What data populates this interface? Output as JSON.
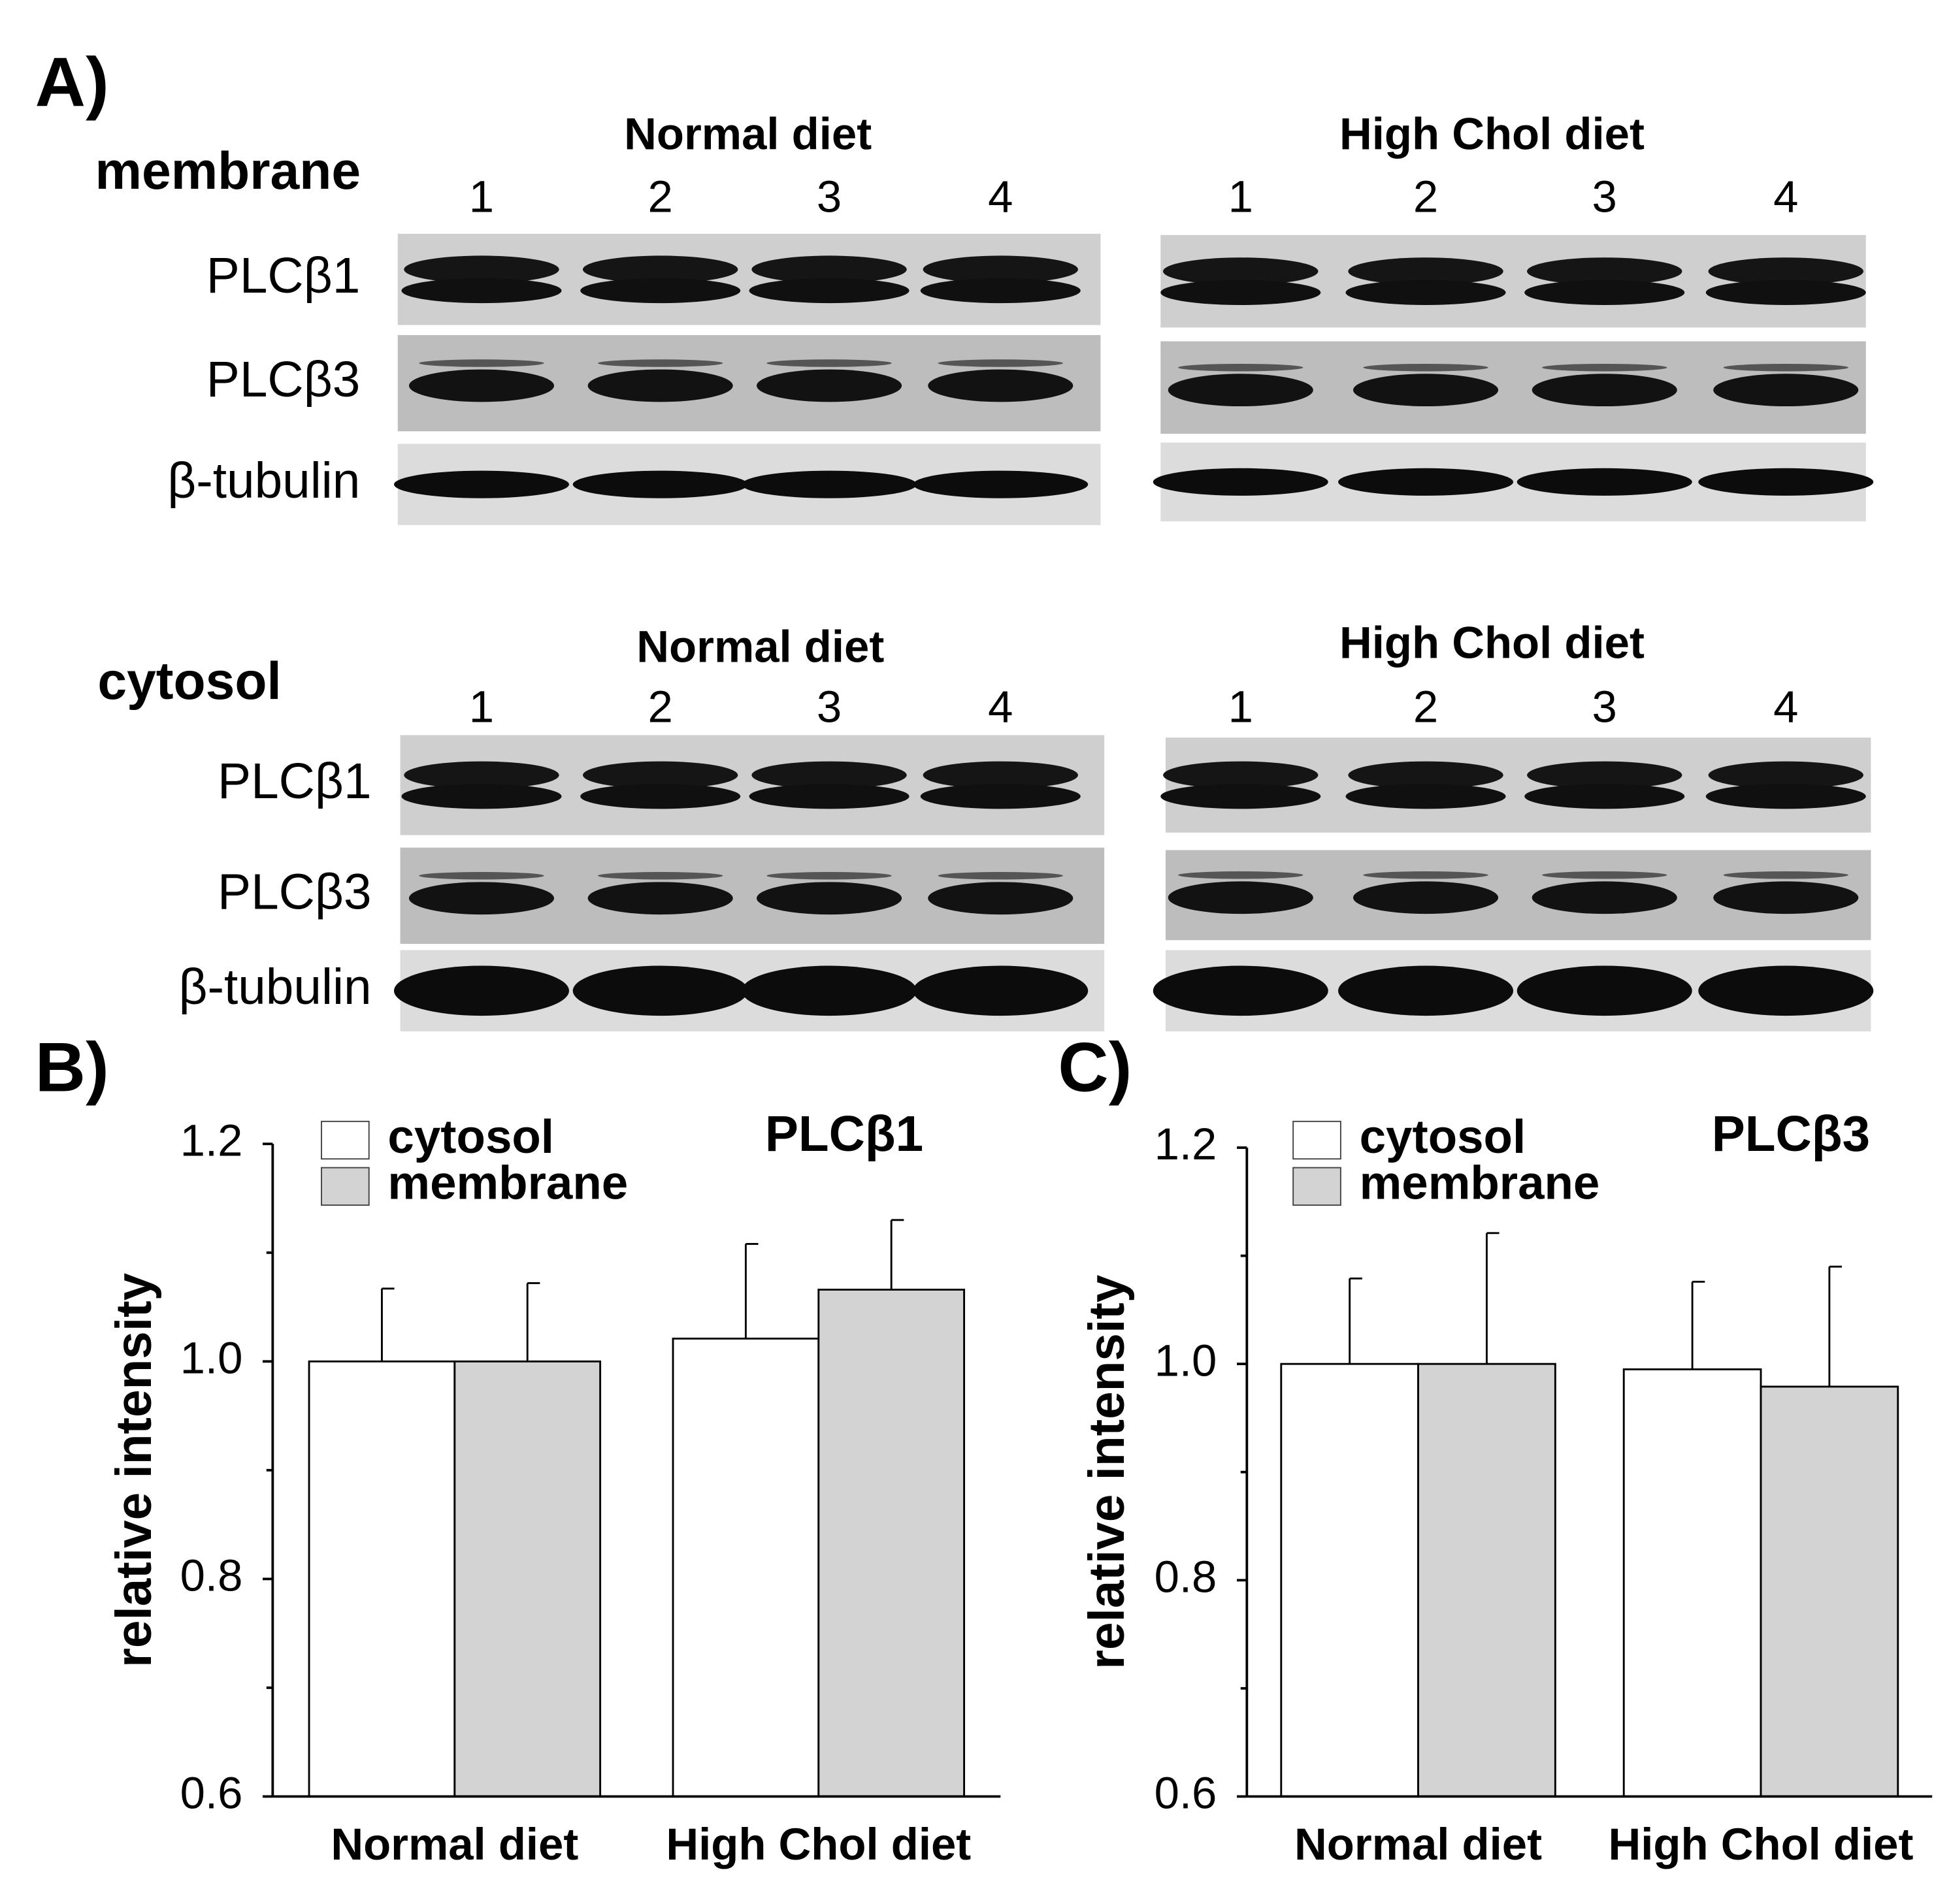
{
  "blots": {
    "label": "A)",
    "sections": [
      {
        "fraction": "membrane",
        "groups": [
          {
            "title": "Normal diet",
            "lanes": [
              "1",
              "2",
              "3",
              "4"
            ]
          },
          {
            "title": "High Chol diet",
            "lanes": [
              "1",
              "2",
              "3",
              "4"
            ]
          }
        ],
        "rows": [
          "PLCβ1",
          "PLCβ3",
          "β-tubulin"
        ]
      },
      {
        "fraction": "cytosol",
        "groups": [
          {
            "title": "Normal diet",
            "lanes": [
              "1",
              "2",
              "3",
              "4"
            ]
          },
          {
            "title": "High Chol diet",
            "lanes": [
              "1",
              "2",
              "3",
              "4"
            ]
          }
        ],
        "rows": [
          "PLCβ1",
          "PLCβ3",
          "β-tubulin"
        ]
      }
    ]
  },
  "chart_data": [
    {
      "type": "bar",
      "panel": "B)",
      "title": "PLCβ1",
      "y_label": "relative intensity",
      "categories": [
        "Normal diet",
        "High Chol diet"
      ],
      "series": [
        {
          "name": "cytosol",
          "color": "#ffffff",
          "values": [
            1.0,
            1.021
          ],
          "errors": [
            0.067,
            0.087
          ]
        },
        {
          "name": "membrane",
          "color": "#d3d3d3",
          "values": [
            1.0,
            1.066
          ],
          "errors": [
            0.072,
            0.064
          ]
        }
      ],
      "ylim": [
        0.6,
        1.2
      ],
      "yticks": [
        0.6,
        0.8,
        {
          "value": 1,
          "label": "1.0"
        },
        1.2
      ],
      "minor_yticks": [
        0.7,
        0.9,
        1.1
      ]
    },
    {
      "type": "bar",
      "panel": "C)",
      "title": "PLCβ3",
      "y_label": "relative intensity",
      "categories": [
        "Normal diet",
        "High Chol diet"
      ],
      "series": [
        {
          "name": "cytosol",
          "color": "#ffffff",
          "values": [
            1.0,
            0.995
          ],
          "errors": [
            0.079,
            0.081
          ]
        },
        {
          "name": "membrane",
          "color": "#d3d3d3",
          "values": [
            1.0,
            0.979
          ],
          "errors": [
            0.121,
            0.111
          ]
        }
      ],
      "ylim": [
        0.6,
        1.2
      ],
      "yticks": [
        0.6,
        0.8,
        {
          "value": 1,
          "label": "1.0"
        },
        1.2
      ],
      "minor_yticks": [
        0.7,
        0.9,
        1.1
      ]
    }
  ]
}
